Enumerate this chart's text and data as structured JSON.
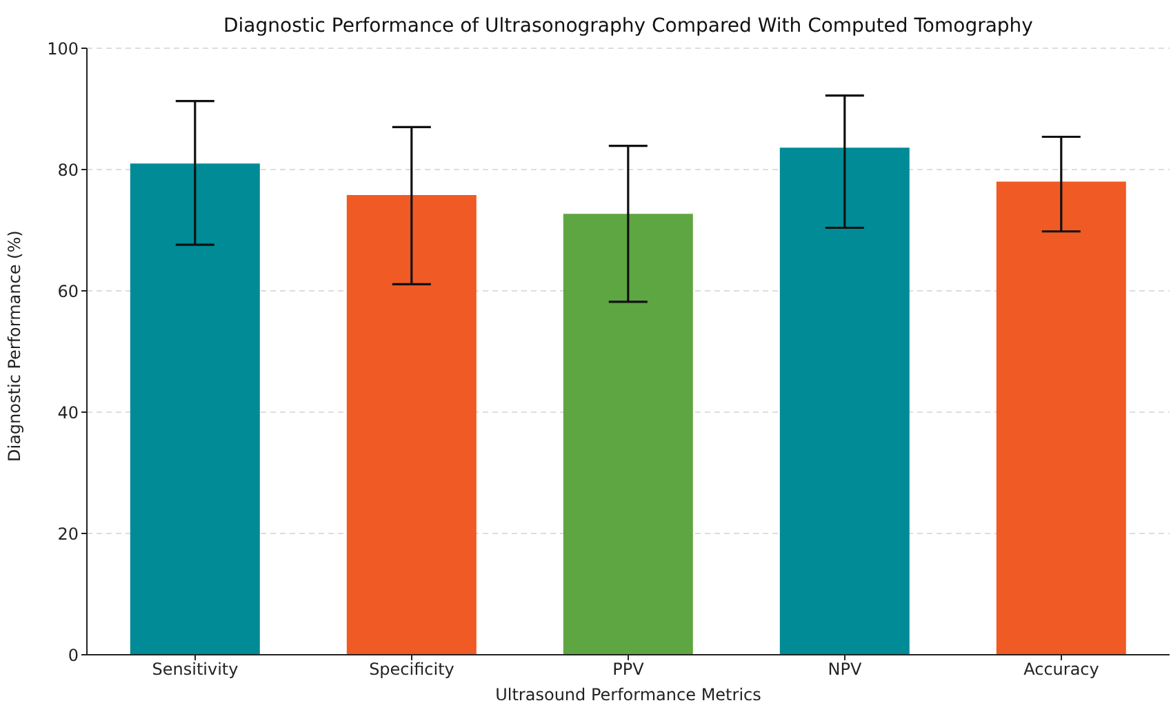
{
  "chart_data": {
    "type": "bar",
    "title": "Diagnostic Performance of Ultrasonography Compared With Computed Tomography",
    "xlabel": "Ultrasound Performance Metrics",
    "ylabel": "Diagnostic Performance (%)",
    "categories": [
      "Sensitivity",
      "Specificity",
      "PPV",
      "NPV",
      "Accuracy"
    ],
    "values": [
      81.0,
      75.8,
      72.7,
      83.6,
      78.0
    ],
    "colors": [
      "#008b96",
      "#f05a24",
      "#5ea642",
      "#008b96",
      "#f05a24"
    ],
    "errors": [
      [
        67.6,
        91.3
      ],
      [
        61.1,
        87.0
      ],
      [
        58.2,
        83.9
      ],
      [
        70.4,
        92.2
      ],
      [
        69.8,
        85.4
      ]
    ],
    "ylim": [
      0,
      100
    ],
    "yticks": [
      0,
      20,
      40,
      60,
      80,
      100
    ],
    "grid": "y"
  }
}
